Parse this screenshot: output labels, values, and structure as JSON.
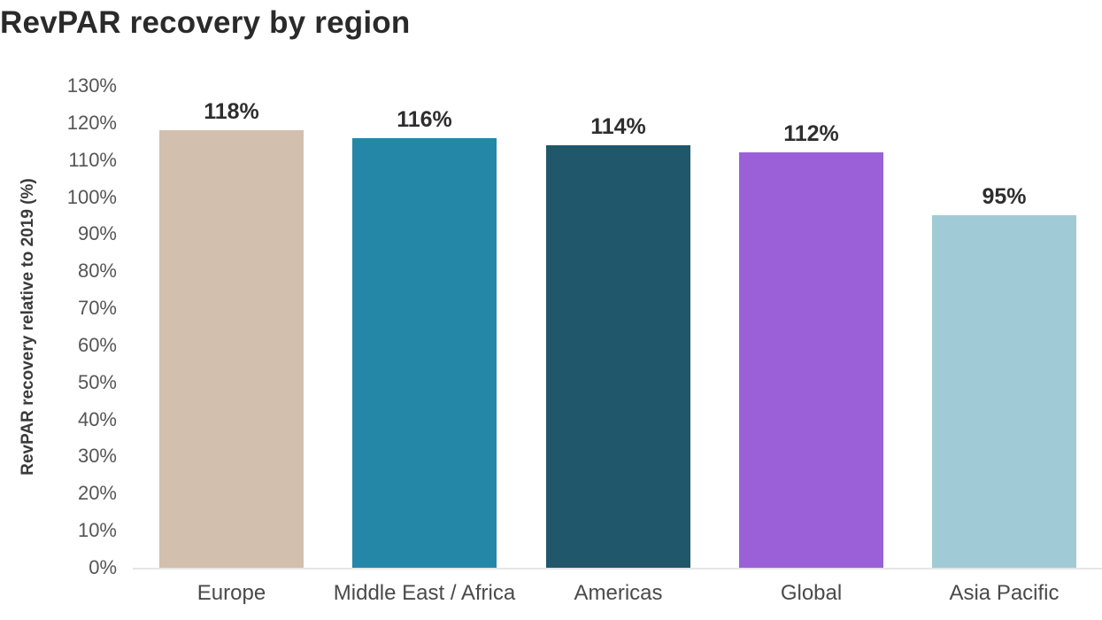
{
  "chart_data": {
    "type": "bar",
    "title": "RevPAR recovery by region",
    "xlabel": "",
    "ylabel": "RevPAR recovery relative to 2019 (%)",
    "categories": [
      "Europe",
      "Middle East / Africa",
      "Americas",
      "Global",
      "Asia Pacific"
    ],
    "values": [
      118,
      116,
      114,
      112,
      95
    ],
    "value_labels": [
      "118%",
      "116%",
      "114%",
      "112%",
      "95%"
    ],
    "colors": [
      "#d3bfae",
      "#2587a8",
      "#20576b",
      "#9b60d8",
      "#a0cad6"
    ],
    "ylim": [
      0,
      130
    ],
    "yticks": [
      0,
      10,
      20,
      30,
      40,
      50,
      60,
      70,
      80,
      90,
      100,
      110,
      120,
      130
    ],
    "ytick_labels": [
      "0%",
      "10%",
      "20%",
      "30%",
      "40%",
      "50%",
      "60%",
      "70%",
      "80%",
      "90%",
      "100%",
      "110%",
      "120%",
      "130%"
    ],
    "grid": false,
    "legend": null
  }
}
